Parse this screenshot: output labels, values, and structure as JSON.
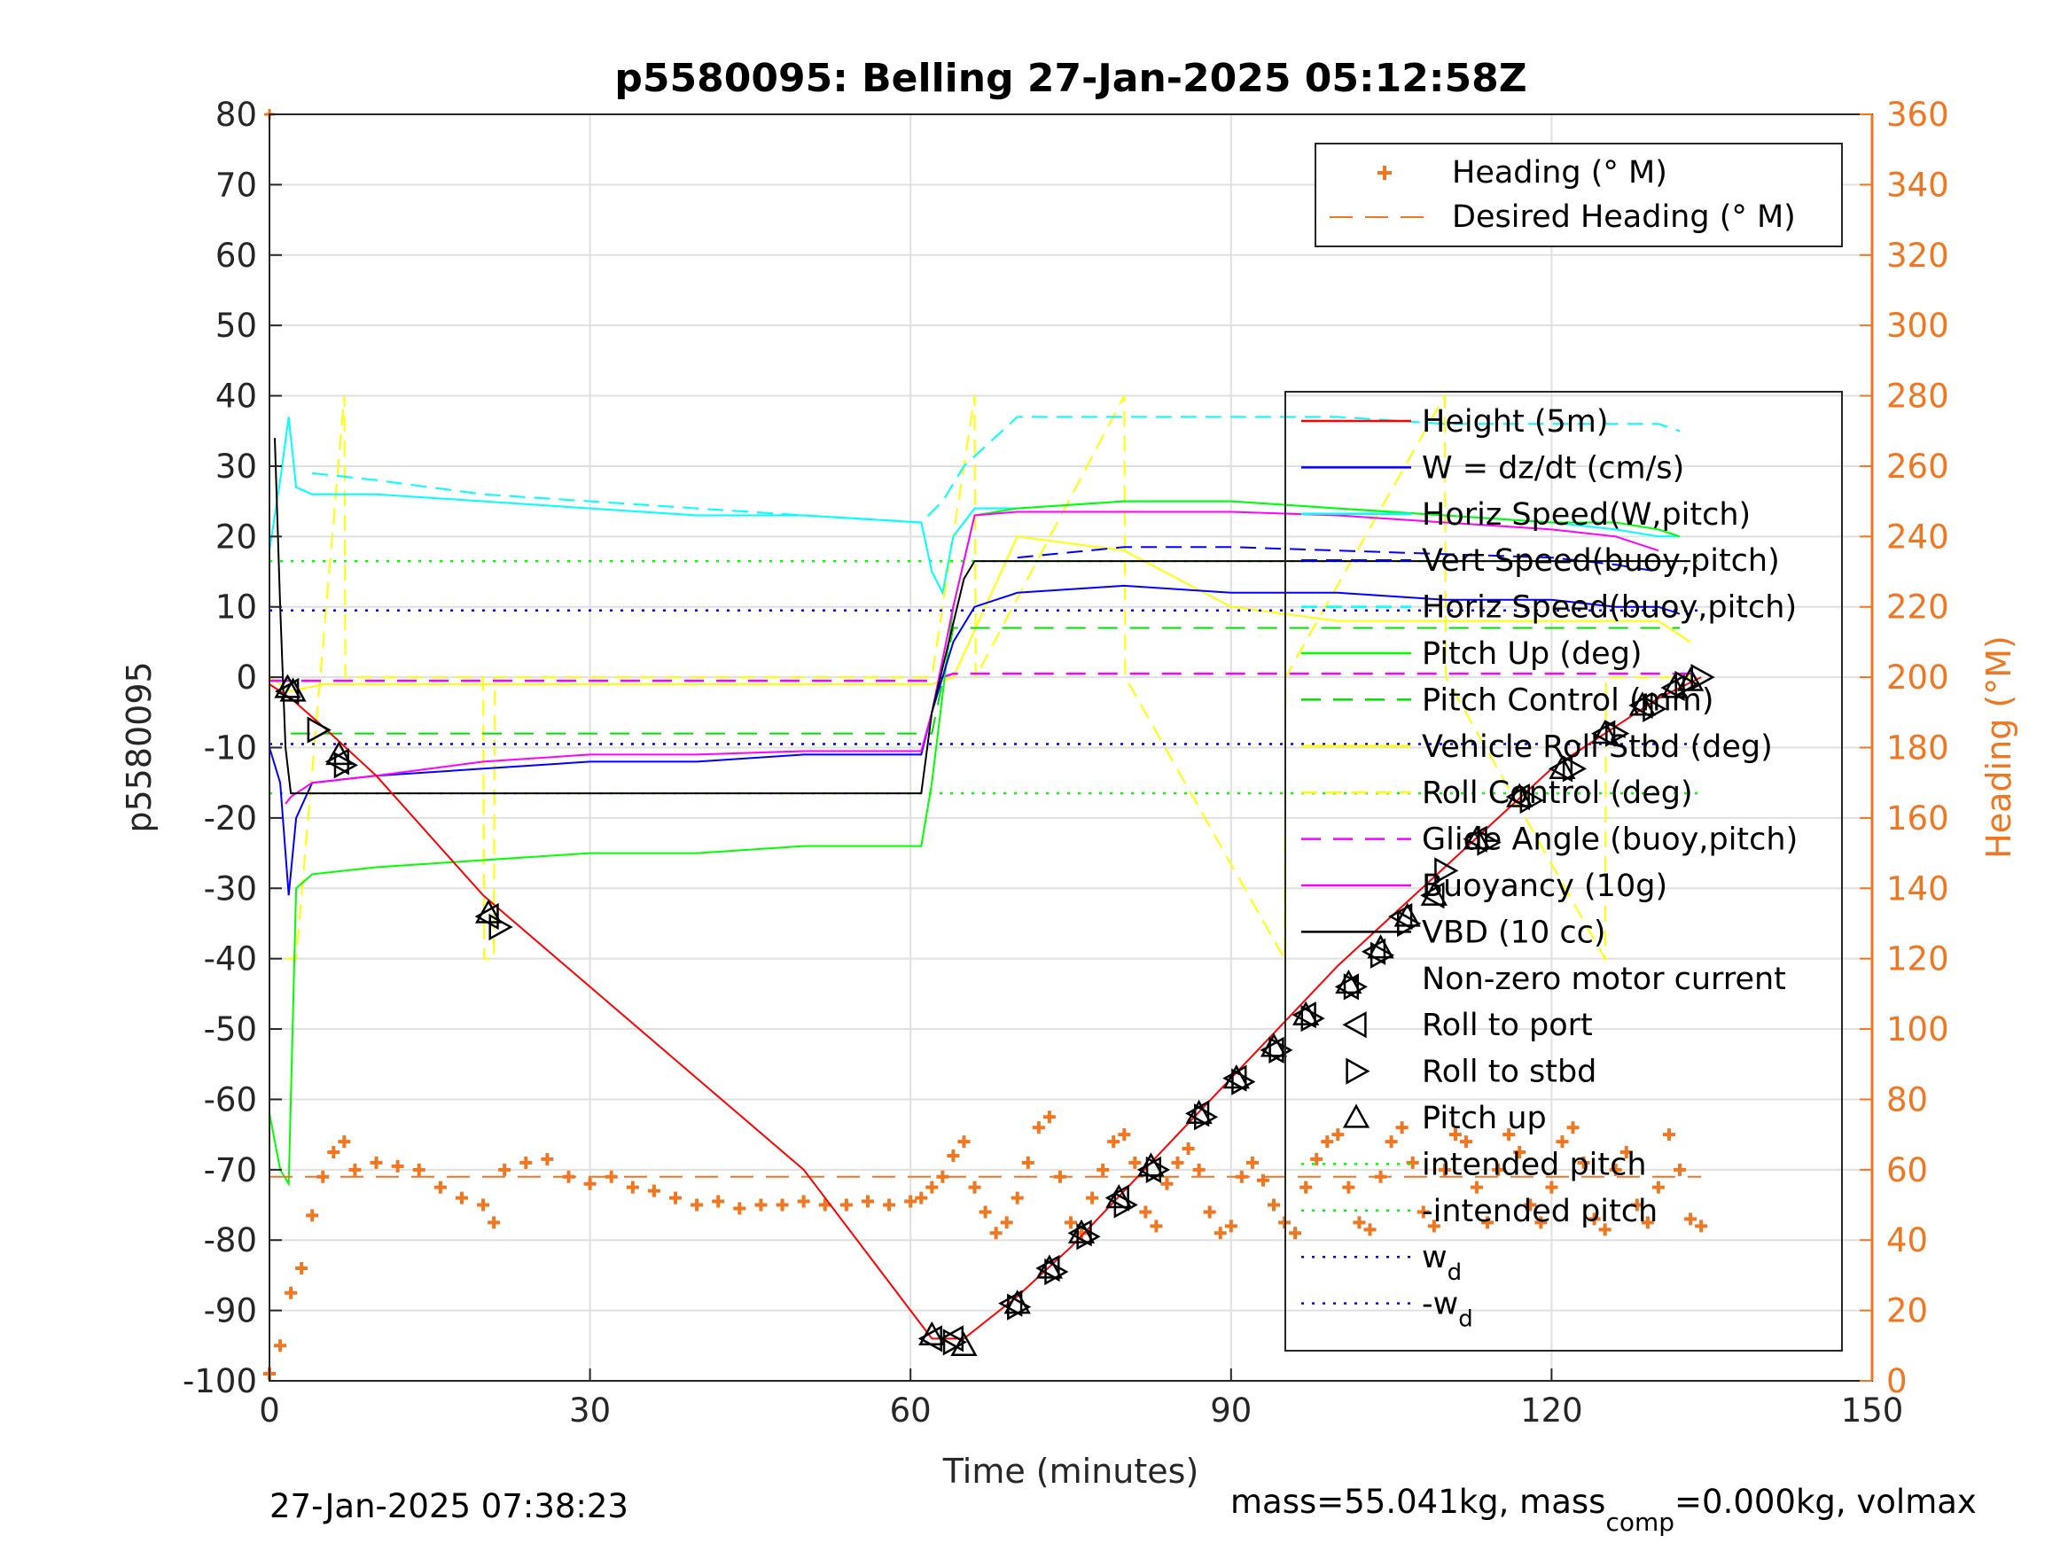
{
  "chart_data": {
    "type": "line",
    "title": "p5580095: Belling 27-Jan-2025 05:12:58Z",
    "xlabel": "Time (minutes)",
    "ylabel": "p5580095",
    "y2label": "Heading (°M)",
    "xlim": [
      0,
      150
    ],
    "ylim": [
      -100,
      80
    ],
    "y2lim": [
      0,
      360
    ],
    "xticks": [
      "0",
      "30",
      "60",
      "90",
      "120",
      "150"
    ],
    "yticks": [
      "80",
      "70",
      "60",
      "50",
      "40",
      "30",
      "20",
      "10",
      "0",
      "-10",
      "-20",
      "-30",
      "-40",
      "-50",
      "-60",
      "-70",
      "-80",
      "-90",
      "-100"
    ],
    "y2ticks": [
      "360",
      "340",
      "320",
      "300",
      "280",
      "260",
      "240",
      "220",
      "200",
      "180",
      "160",
      "140",
      "120",
      "100",
      "80",
      "60",
      "40",
      "20",
      "0"
    ],
    "grid": true,
    "legend_top": {
      "placement": "top-right",
      "entries": [
        "Heading (° M)",
        "Desired Heading (° M)"
      ]
    },
    "legend_main": {
      "placement": "right",
      "entries": [
        "Height (5m)",
        "W = dz/dt (cm/s)",
        "Horiz Speed(W,pitch)",
        "Vert Speed(buoy,pitch)",
        "Horiz Speed(buoy,pitch)",
        "Pitch Up (deg)",
        "Pitch Control (mm)",
        "Vehicle Roll Stbd (deg)",
        "Roll Control (deg)",
        "Glide Angle (buoy,pitch)",
        "Buoyancy (10g)",
        "VBD (10 cc)",
        "Non-zero motor current",
        "Roll to port",
        "Roll to stbd",
        "Pitch up",
        "intended pitch",
        "-intended pitch",
        "w",
        "-w"
      ],
      "subscript": "d"
    },
    "colors": {
      "height": "#ff0000",
      "w": "#0000ff",
      "horiz_w": "#00ffff",
      "vert_buoy": "#0000ff",
      "horiz_buoy": "#00ffff",
      "pitch_up": "#00ff00",
      "pitch_ctrl": "#00dd00",
      "roll": "#ffff00",
      "roll_ctrl": "#ffff00",
      "glide": "#ff00ff",
      "buoyancy": "#ff00ff",
      "vbd": "#000000",
      "heading": "#f07722"
    },
    "series": [
      {
        "key": "height",
        "x": [
          0,
          1,
          2,
          5,
          10,
          20,
          30,
          40,
          50,
          62,
          65,
          70,
          75,
          80,
          85,
          90,
          95,
          100,
          105,
          110,
          115,
          120,
          125,
          130,
          134
        ],
        "y": [
          -1,
          -2,
          -3,
          -7,
          -14,
          -31,
          -44,
          -57,
          -70,
          -94,
          -94,
          -88,
          -81,
          -73,
          -65,
          -57,
          -49,
          -41,
          -34,
          -27,
          -20,
          -13,
          -8,
          -3,
          0
        ]
      },
      {
        "key": "w",
        "x": [
          0,
          1,
          1.8,
          2.5,
          4,
          10,
          20,
          30,
          40,
          50,
          61,
          62,
          64,
          66,
          70,
          80,
          90,
          100,
          110,
          120,
          126,
          130,
          132
        ],
        "y": [
          -10,
          -15,
          -31,
          -20,
          -15,
          -14,
          -13,
          -12,
          -12,
          -11,
          -11,
          -5,
          5,
          10,
          12,
          13,
          12,
          12,
          11,
          11,
          10,
          10,
          9
        ]
      },
      {
        "key": "horiz_w",
        "x": [
          0,
          1,
          1.8,
          2.5,
          4,
          10,
          20,
          30,
          40,
          50,
          61,
          62,
          63,
          64,
          66,
          70,
          80,
          90,
          100,
          110,
          120,
          126,
          130,
          132
        ],
        "y": [
          18,
          28,
          37,
          27,
          26,
          26,
          25,
          24,
          23,
          23,
          22,
          15,
          12,
          20,
          24,
          24,
          25,
          25,
          24,
          23,
          22,
          21,
          20,
          20
        ]
      },
      {
        "key": "vert_buoy",
        "x": [
          70,
          80,
          90,
          100,
          110,
          120,
          126,
          130
        ],
        "y": [
          17,
          18.5,
          18.5,
          18,
          17.5,
          17,
          16,
          15
        ]
      },
      {
        "key": "horiz_buoy",
        "x": [
          4,
          10,
          20,
          30,
          40,
          50,
          61,
          63,
          65,
          70,
          80,
          90,
          100,
          110,
          120,
          126,
          130,
          132
        ],
        "y": [
          29,
          28,
          26,
          25,
          24,
          23,
          22,
          25,
          30,
          37,
          37,
          37,
          37,
          36,
          36,
          36,
          36,
          35
        ]
      },
      {
        "key": "pitch_up",
        "x": [
          0,
          1,
          1.8,
          2.5,
          4,
          10,
          20,
          30,
          40,
          50,
          61,
          62,
          64,
          66,
          70,
          80,
          90,
          100,
          110,
          120,
          126,
          130,
          132
        ],
        "y": [
          -62,
          -70,
          -72,
          -30,
          -28,
          -27,
          -26,
          -25,
          -25,
          -24,
          -24,
          -15,
          10,
          23,
          24,
          25,
          25,
          24,
          23,
          22,
          22,
          21,
          20
        ]
      },
      {
        "key": "pitch_ctrl",
        "x": [
          2,
          10,
          20,
          30,
          40,
          50,
          62,
          64,
          70,
          80,
          90,
          100,
          110,
          120,
          126,
          132
        ],
        "y": [
          -8,
          -8,
          -8,
          -8,
          -8,
          -8,
          -8,
          7,
          7,
          7,
          7,
          7,
          7,
          7,
          7,
          7
        ]
      },
      {
        "key": "roll",
        "x": [
          0,
          1,
          2,
          5,
          10,
          20,
          30,
          40,
          50,
          60,
          62,
          64,
          70,
          80,
          90,
          100,
          110,
          120,
          126,
          130,
          133
        ],
        "y": [
          0,
          -1,
          -2,
          -1,
          -1,
          -1,
          -1,
          -1,
          -1,
          -1,
          -1,
          0,
          20,
          18,
          10,
          8,
          8,
          8,
          8,
          8,
          5
        ]
      },
      {
        "key": "roll_ctrl",
        "x": [
          1.5,
          2.5,
          7,
          7.1,
          20,
          20.1,
          21,
          21.1,
          62,
          66,
          66.1,
          80,
          80.1,
          95,
          95.1,
          110,
          110.1,
          125,
          125.1,
          133
        ],
        "y": [
          -40,
          -40,
          40,
          0,
          0,
          -40,
          -40,
          0,
          0,
          40,
          0,
          40,
          0,
          -40,
          0,
          40,
          0,
          -40,
          0,
          0
        ]
      },
      {
        "key": "glide",
        "x": [
          0,
          10,
          20,
          30,
          40,
          50,
          62,
          64,
          70,
          80,
          90,
          100,
          110,
          120,
          130,
          134
        ],
        "y": [
          -0.5,
          -0.5,
          -0.5,
          -0.5,
          -0.5,
          -0.5,
          -0.5,
          0.5,
          0.5,
          0.5,
          0.5,
          0.5,
          0.5,
          0.5,
          0.5,
          0.5
        ]
      },
      {
        "key": "buoyancy",
        "x": [
          1.5,
          2,
          4,
          10,
          20,
          30,
          40,
          50,
          61,
          62,
          64,
          66,
          70,
          80,
          90,
          100,
          110,
          120,
          126,
          130
        ],
        "y": [
          -18,
          -17,
          -15,
          -14,
          -12,
          -11,
          -11,
          -10.5,
          -10.5,
          -5,
          10,
          23,
          23.5,
          23.5,
          23.5,
          23,
          22,
          21,
          20,
          18
        ]
      },
      {
        "key": "vbd",
        "x": [
          0.5,
          1,
          1.5,
          2,
          3,
          10,
          20,
          30,
          40,
          50,
          61,
          62,
          65,
          66,
          70,
          80,
          90,
          100,
          110,
          120,
          130,
          133
        ],
        "y": [
          34,
          10,
          -10,
          -16.5,
          -16.5,
          -16.5,
          -16.5,
          -16.5,
          -16.5,
          -16.5,
          -16.5,
          -5,
          14,
          16.5,
          16.5,
          16.5,
          16.5,
          16.5,
          16.5,
          16.5,
          16.5,
          16.5
        ]
      },
      {
        "key": "intended_pitch",
        "x": [
          0,
          134
        ],
        "y": [
          16.5,
          16.5
        ]
      },
      {
        "key": "neg_intended_pitch",
        "x": [
          0,
          134
        ],
        "y": [
          -16.5,
          -16.5
        ]
      },
      {
        "key": "wd",
        "x": [
          0,
          134
        ],
        "y": [
          9.5,
          9.5
        ]
      },
      {
        "key": "neg_wd",
        "x": [
          0,
          134
        ],
        "y": [
          -9.5,
          -9.5
        ]
      },
      {
        "key": "heading",
        "axis": "right",
        "x": [
          0,
          1,
          2,
          3,
          4,
          5,
          6,
          7,
          8,
          10,
          12,
          14,
          16,
          18,
          20,
          21,
          22,
          24,
          26,
          28,
          30,
          32,
          34,
          36,
          38,
          40,
          42,
          44,
          46,
          48,
          50,
          52,
          54,
          56,
          58,
          60,
          61,
          62,
          63,
          64,
          65,
          66,
          67,
          68,
          69,
          70,
          71,
          72,
          73,
          74,
          75,
          76,
          77,
          78,
          79,
          80,
          81,
          82,
          83,
          84,
          85,
          86,
          87,
          88,
          89,
          90,
          91,
          92,
          93,
          94,
          95,
          96,
          97,
          98,
          99,
          100,
          101,
          102,
          103,
          104,
          105,
          106,
          107,
          108,
          109,
          110,
          111,
          112,
          113,
          114,
          115,
          116,
          117,
          118,
          119,
          120,
          121,
          122,
          123,
          124,
          125,
          126,
          127,
          128,
          129,
          130,
          131,
          132,
          133,
          134
        ],
        "y": [
          2,
          10,
          25,
          32,
          47,
          58,
          65,
          68,
          60,
          62,
          61,
          60,
          55,
          52,
          50,
          45,
          60,
          62,
          63,
          58,
          56,
          58,
          55,
          54,
          52,
          50,
          51,
          49,
          50,
          50,
          51,
          50,
          50,
          51,
          50,
          51,
          52,
          55,
          58,
          64,
          68,
          55,
          48,
          42,
          45,
          52,
          62,
          72,
          75,
          58,
          45,
          42,
          52,
          60,
          68,
          70,
          62,
          48,
          44,
          56,
          62,
          66,
          60,
          48,
          42,
          44,
          58,
          62,
          57,
          50,
          45,
          42,
          55,
          63,
          68,
          70,
          55,
          45,
          43,
          58,
          68,
          72,
          62,
          48,
          44,
          60,
          70,
          68,
          55,
          45,
          60,
          70,
          65,
          50,
          45,
          55,
          68,
          72,
          62,
          46,
          43,
          60,
          65,
          50,
          45,
          55,
          70,
          60,
          46,
          44
        ]
      },
      {
        "key": "desired_heading",
        "axis": "right",
        "x": [
          0,
          134
        ],
        "y": [
          58,
          58
        ]
      }
    ],
    "markers": {
      "roll_to_port": {
        "x": [
          1.8,
          6.5,
          20.5,
          62,
          64,
          69.5,
          73,
          76,
          79.5,
          82.5,
          87,
          90.5,
          94,
          97,
          101,
          103.5,
          106,
          109,
          113,
          117,
          121,
          125,
          128.5,
          131.5
        ],
        "y": [
          -2,
          -12,
          -34,
          -94,
          -94,
          -89,
          -84,
          -79,
          -74,
          -70,
          -62,
          -57,
          -53,
          -48,
          -44,
          -39,
          -34,
          -31,
          -23,
          -17,
          -13,
          -8,
          -4,
          -1.5
        ]
      },
      "roll_to_stbd": {
        "x": [
          4.5,
          7,
          21.5,
          64,
          70,
          73.5,
          76.5,
          80,
          83,
          87.5,
          91,
          94.5,
          97.5,
          101.5,
          104,
          106.5,
          110,
          114,
          118,
          122,
          126,
          129.5,
          132.5,
          134
        ],
        "y": [
          -7.5,
          -12.5,
          -35.5,
          -94.5,
          -89.5,
          -84.5,
          -79.5,
          -75,
          -70,
          -62.5,
          -57.5,
          -53,
          -48.5,
          -44,
          -39.5,
          -35,
          -27.5,
          -23.5,
          -17.5,
          -13,
          -8,
          -4.5,
          -1,
          0
        ]
      },
      "pitch_up": {
        "x": [
          1.7,
          2.2,
          6.5,
          20.5,
          62,
          65,
          70,
          73,
          76,
          79.5,
          82.5,
          87,
          90.5,
          94,
          97,
          101,
          104,
          106.5,
          109,
          113,
          117,
          121,
          125,
          128.5,
          131.5,
          133
        ],
        "y": [
          -1.5,
          -2,
          -11,
          -33.5,
          -93.5,
          -95,
          -89,
          -84,
          -79,
          -74,
          -69.5,
          -62,
          -57,
          -52.5,
          -48,
          -43.5,
          -38.5,
          -34,
          -31,
          -23,
          -17,
          -13,
          -8,
          -4,
          -1.5,
          -0.5
        ]
      }
    },
    "annotation": {
      "x": 0,
      "y": 80,
      "color": "#f07722"
    }
  },
  "footer": {
    "timestamp": "27-Jan-2025 07:38:23",
    "mass_prefix": "mass=55.041kg, mass",
    "mass_sub": "comp",
    "mass_suffix": "=0.000kg, volmax"
  }
}
